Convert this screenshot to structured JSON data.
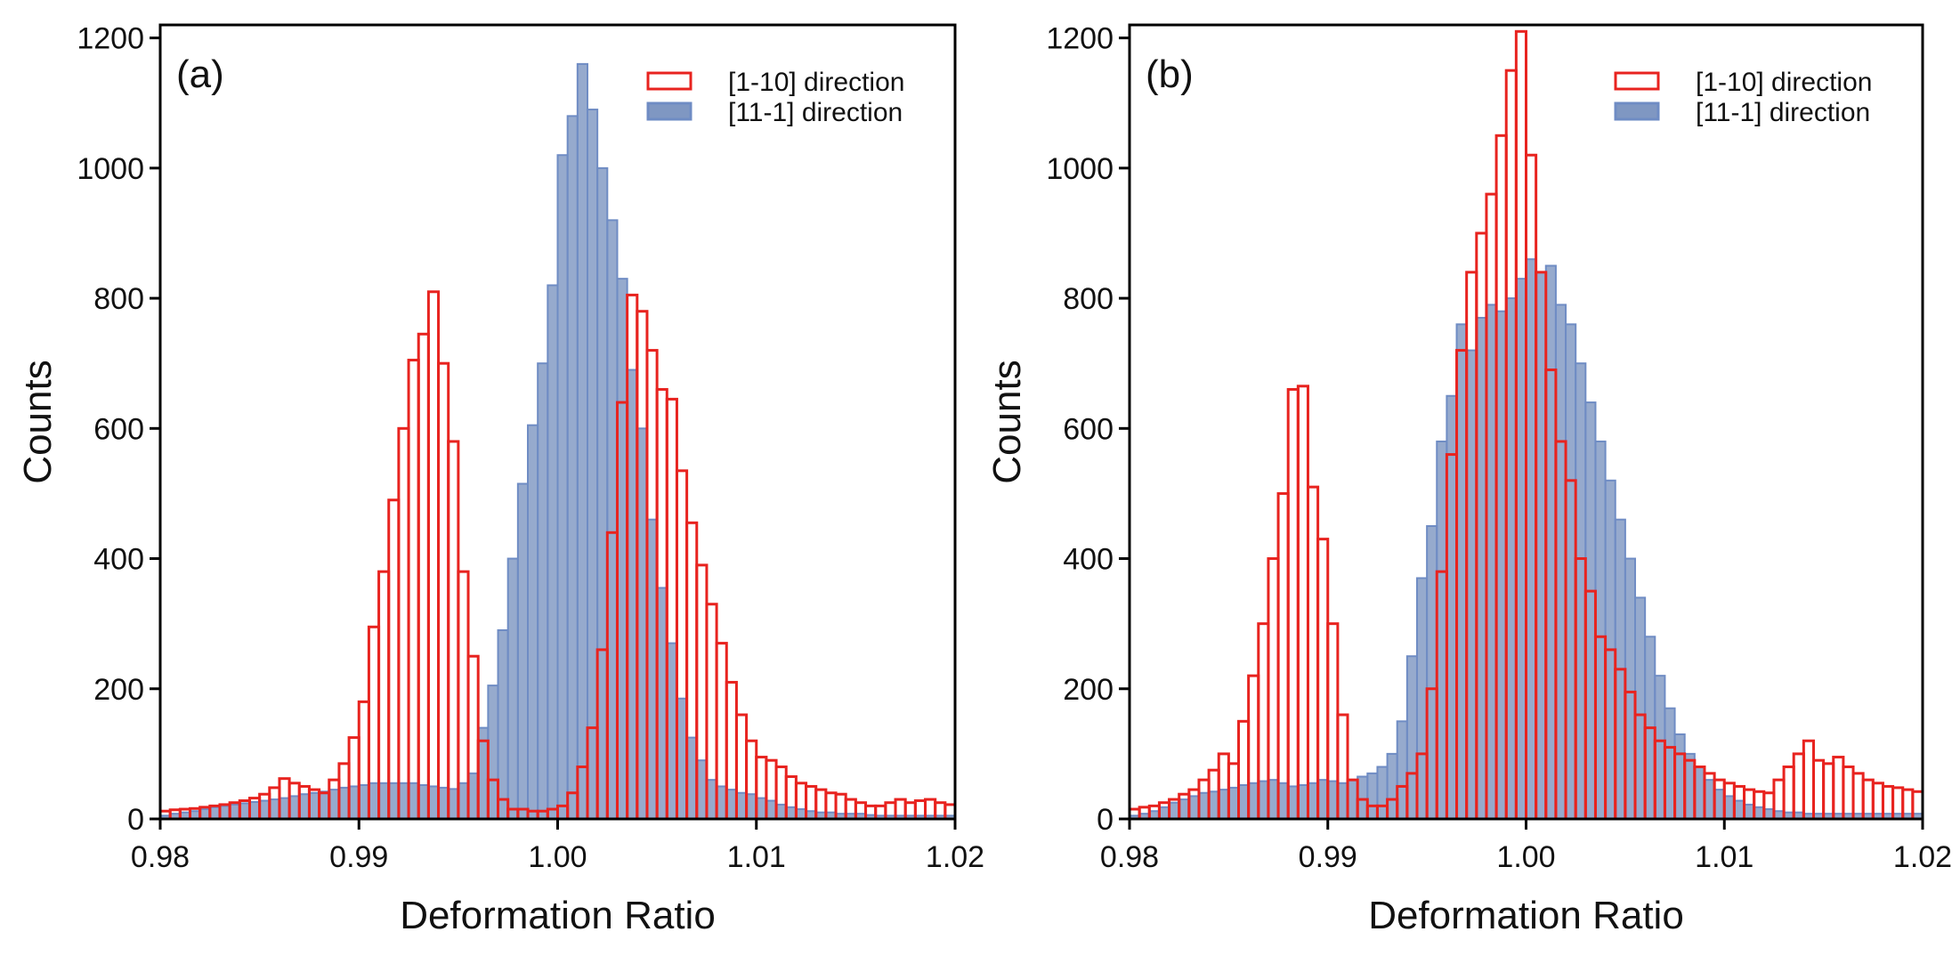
{
  "figure": {
    "series_colors": {
      "red": "#e8231f",
      "blue_fill": "#7f97c2",
      "blue_edge": "#6f8cc4"
    }
  },
  "chart_data": [
    {
      "type": "histogram",
      "panel_label": "(a)",
      "xlabel": "Deformation Ratio",
      "ylabel": "Counts",
      "xlim": [
        0.98,
        1.02
      ],
      "ylim": [
        0,
        1220
      ],
      "xticks": [
        0.98,
        0.99,
        1.0,
        1.01,
        1.02
      ],
      "xtick_labels": [
        "0.98",
        "0.99",
        "1.00",
        "1.01",
        "1.02"
      ],
      "yticks": [
        0,
        200,
        400,
        600,
        800,
        1000,
        1200
      ],
      "ytick_labels": [
        "0",
        "200",
        "400",
        "600",
        "800",
        "1000",
        "1200"
      ],
      "legend": {
        "position": "top-right",
        "entries": [
          "[1-10] direction",
          "[11-1] direction"
        ]
      },
      "bin_start": 0.98,
      "bin_width": 0.0005,
      "series": [
        {
          "name": "[1-10] direction",
          "style": "step-outline",
          "color": "#e8231f",
          "values": [
            12,
            14,
            15,
            16,
            18,
            20,
            22,
            25,
            28,
            32,
            38,
            48,
            62,
            55,
            50,
            45,
            40,
            60,
            85,
            125,
            180,
            295,
            380,
            490,
            600,
            705,
            745,
            810,
            700,
            580,
            380,
            250,
            120,
            60,
            30,
            15,
            15,
            12,
            12,
            15,
            20,
            40,
            80,
            140,
            260,
            440,
            640,
            805,
            780,
            720,
            660,
            645,
            535,
            455,
            390,
            330,
            270,
            210,
            160,
            120,
            95,
            90,
            80,
            65,
            55,
            50,
            45,
            40,
            38,
            30,
            25,
            20,
            20,
            25,
            30,
            25,
            28,
            30,
            25,
            22,
            20
          ]
        },
        {
          "name": "[11-1] direction",
          "style": "filled-step",
          "color": "#7f97c2",
          "values": [
            5,
            8,
            10,
            12,
            15,
            18,
            20,
            22,
            24,
            26,
            28,
            30,
            32,
            35,
            38,
            40,
            42,
            45,
            48,
            50,
            52,
            55,
            55,
            55,
            55,
            55,
            52,
            50,
            48,
            46,
            55,
            70,
            140,
            205,
            290,
            400,
            515,
            605,
            700,
            820,
            1020,
            1080,
            1160,
            1090,
            1000,
            920,
            830,
            690,
            600,
            460,
            355,
            270,
            185,
            125,
            90,
            60,
            50,
            45,
            40,
            38,
            32,
            28,
            22,
            18,
            15,
            12,
            10,
            10,
            8,
            8,
            8,
            6,
            5,
            5,
            5,
            5,
            5,
            5,
            5,
            5,
            5
          ]
        }
      ]
    },
    {
      "type": "histogram",
      "panel_label": "(b)",
      "xlabel": "Deformation Ratio",
      "ylabel": "Counts",
      "xlim": [
        0.98,
        1.02
      ],
      "ylim": [
        0,
        1220
      ],
      "xticks": [
        0.98,
        0.99,
        1.0,
        1.01,
        1.02
      ],
      "xtick_labels": [
        "0.98",
        "0.99",
        "1.00",
        "1.01",
        "1.02"
      ],
      "yticks": [
        0,
        200,
        400,
        600,
        800,
        1000,
        1200
      ],
      "ytick_labels": [
        "0",
        "200",
        "400",
        "600",
        "800",
        "1000",
        "1200"
      ],
      "legend": {
        "position": "top-right",
        "entries": [
          "[1-10] direction",
          "[11-1] direction"
        ]
      },
      "bin_start": 0.98,
      "bin_width": 0.0005,
      "series": [
        {
          "name": "[1-10] direction",
          "style": "step-outline",
          "color": "#e8231f",
          "values": [
            15,
            18,
            20,
            25,
            30,
            38,
            45,
            60,
            75,
            100,
            85,
            150,
            220,
            300,
            400,
            500,
            660,
            665,
            510,
            430,
            300,
            160,
            60,
            30,
            20,
            20,
            30,
            50,
            70,
            100,
            200,
            380,
            560,
            720,
            840,
            900,
            960,
            1050,
            1150,
            1210,
            1020,
            840,
            690,
            580,
            520,
            400,
            350,
            280,
            260,
            230,
            195,
            160,
            140,
            120,
            110,
            100,
            90,
            80,
            70,
            60,
            55,
            50,
            45,
            42,
            40,
            60,
            80,
            100,
            120,
            90,
            85,
            95,
            80,
            70,
            60,
            55,
            50,
            48,
            45,
            42,
            40
          ]
        },
        {
          "name": "[11-1] direction",
          "style": "filled-step",
          "color": "#7f97c2",
          "values": [
            5,
            8,
            12,
            18,
            25,
            30,
            35,
            40,
            42,
            45,
            48,
            52,
            55,
            58,
            60,
            55,
            50,
            52,
            55,
            60,
            58,
            55,
            60,
            65,
            70,
            80,
            100,
            150,
            250,
            370,
            450,
            580,
            650,
            760,
            720,
            770,
            790,
            780,
            800,
            830,
            860,
            840,
            850,
            790,
            760,
            700,
            640,
            580,
            520,
            460,
            400,
            340,
            280,
            220,
            170,
            130,
            100,
            80,
            60,
            45,
            35,
            28,
            22,
            18,
            15,
            12,
            10,
            10,
            8,
            8,
            8,
            8,
            8,
            8,
            8,
            8,
            8,
            8,
            8,
            8,
            8
          ]
        }
      ]
    }
  ]
}
